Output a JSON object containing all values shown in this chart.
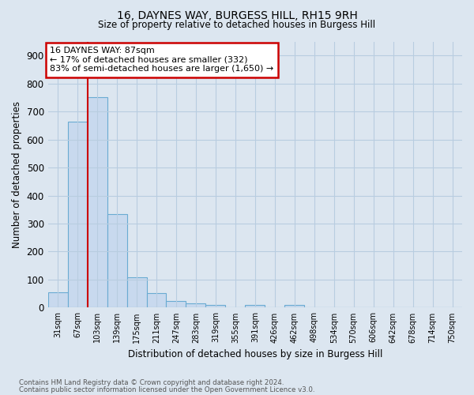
{
  "title1": "16, DAYNES WAY, BURGESS HILL, RH15 9RH",
  "title2": "Size of property relative to detached houses in Burgess Hill",
  "xlabel": "Distribution of detached houses by size in Burgess Hill",
  "ylabel": "Number of detached properties",
  "footnote1": "Contains HM Land Registry data © Crown copyright and database right 2024.",
  "footnote2": "Contains public sector information licensed under the Open Government Licence v3.0.",
  "bar_labels": [
    "31sqm",
    "67sqm",
    "103sqm",
    "139sqm",
    "175sqm",
    "211sqm",
    "247sqm",
    "283sqm",
    "319sqm",
    "355sqm",
    "391sqm",
    "426sqm",
    "462sqm",
    "498sqm",
    "534sqm",
    "570sqm",
    "606sqm",
    "642sqm",
    "678sqm",
    "714sqm",
    "750sqm"
  ],
  "bar_values": [
    55,
    665,
    750,
    335,
    108,
    52,
    25,
    15,
    10,
    0,
    10,
    0,
    10,
    0,
    0,
    0,
    0,
    0,
    0,
    0,
    0
  ],
  "bar_color": "#c8d9ee",
  "bar_edge_color": "#6aabd2",
  "vline_x": 1.5,
  "vline_color": "#cc0000",
  "annotation_title": "16 DAYNES WAY: 87sqm",
  "annotation_line1": "← 17% of detached houses are smaller (332)",
  "annotation_line2": "83% of semi-detached houses are larger (1,650) →",
  "annotation_box_color": "#cc0000",
  "ylim": [
    0,
    950
  ],
  "yticks": [
    0,
    100,
    200,
    300,
    400,
    500,
    600,
    700,
    800,
    900
  ],
  "bg_color": "#dce6f0",
  "plot_bg_color": "#dce6f0",
  "grid_color": "#b8cde0"
}
